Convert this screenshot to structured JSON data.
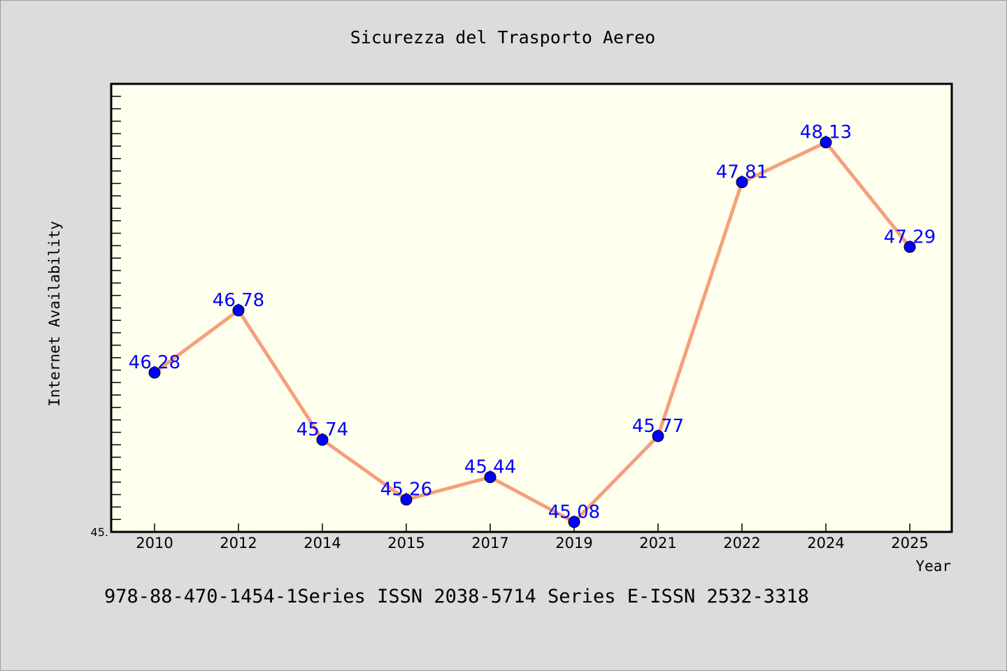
{
  "chart_data": {
    "type": "line",
    "title": "Sicurezza del Trasporto Aereo",
    "xlabel": "Year",
    "ylabel": "Internet Availability",
    "categories": [
      "2010",
      "2012",
      "2014",
      "2015",
      "2017",
      "2019",
      "2021",
      "2022",
      "2024",
      "2025"
    ],
    "series": [
      {
        "values": [
          46.28,
          46.78,
          45.74,
          45.26,
          45.44,
          45.08,
          45.77,
          47.81,
          48.13,
          47.29
        ],
        "labels": [
          "46.28",
          "46.78",
          "45.74",
          "45.26",
          "45.44",
          "45.08",
          "45.77",
          "47.81",
          "48.13",
          "47.29"
        ]
      }
    ],
    "ylim": [
      45.0,
      48.6
    ],
    "y_tick_labels": [
      "45."
    ],
    "footer": "978-88-470-1454-1Series ISSN 2038-5714 Series E-ISSN 2532-3318",
    "grid": false,
    "colors": {
      "line": "#f4a07c",
      "marker": "#0000ff",
      "label": "#0000ff",
      "background": "#dcdcdc",
      "plot_background": "#ffffee"
    }
  }
}
